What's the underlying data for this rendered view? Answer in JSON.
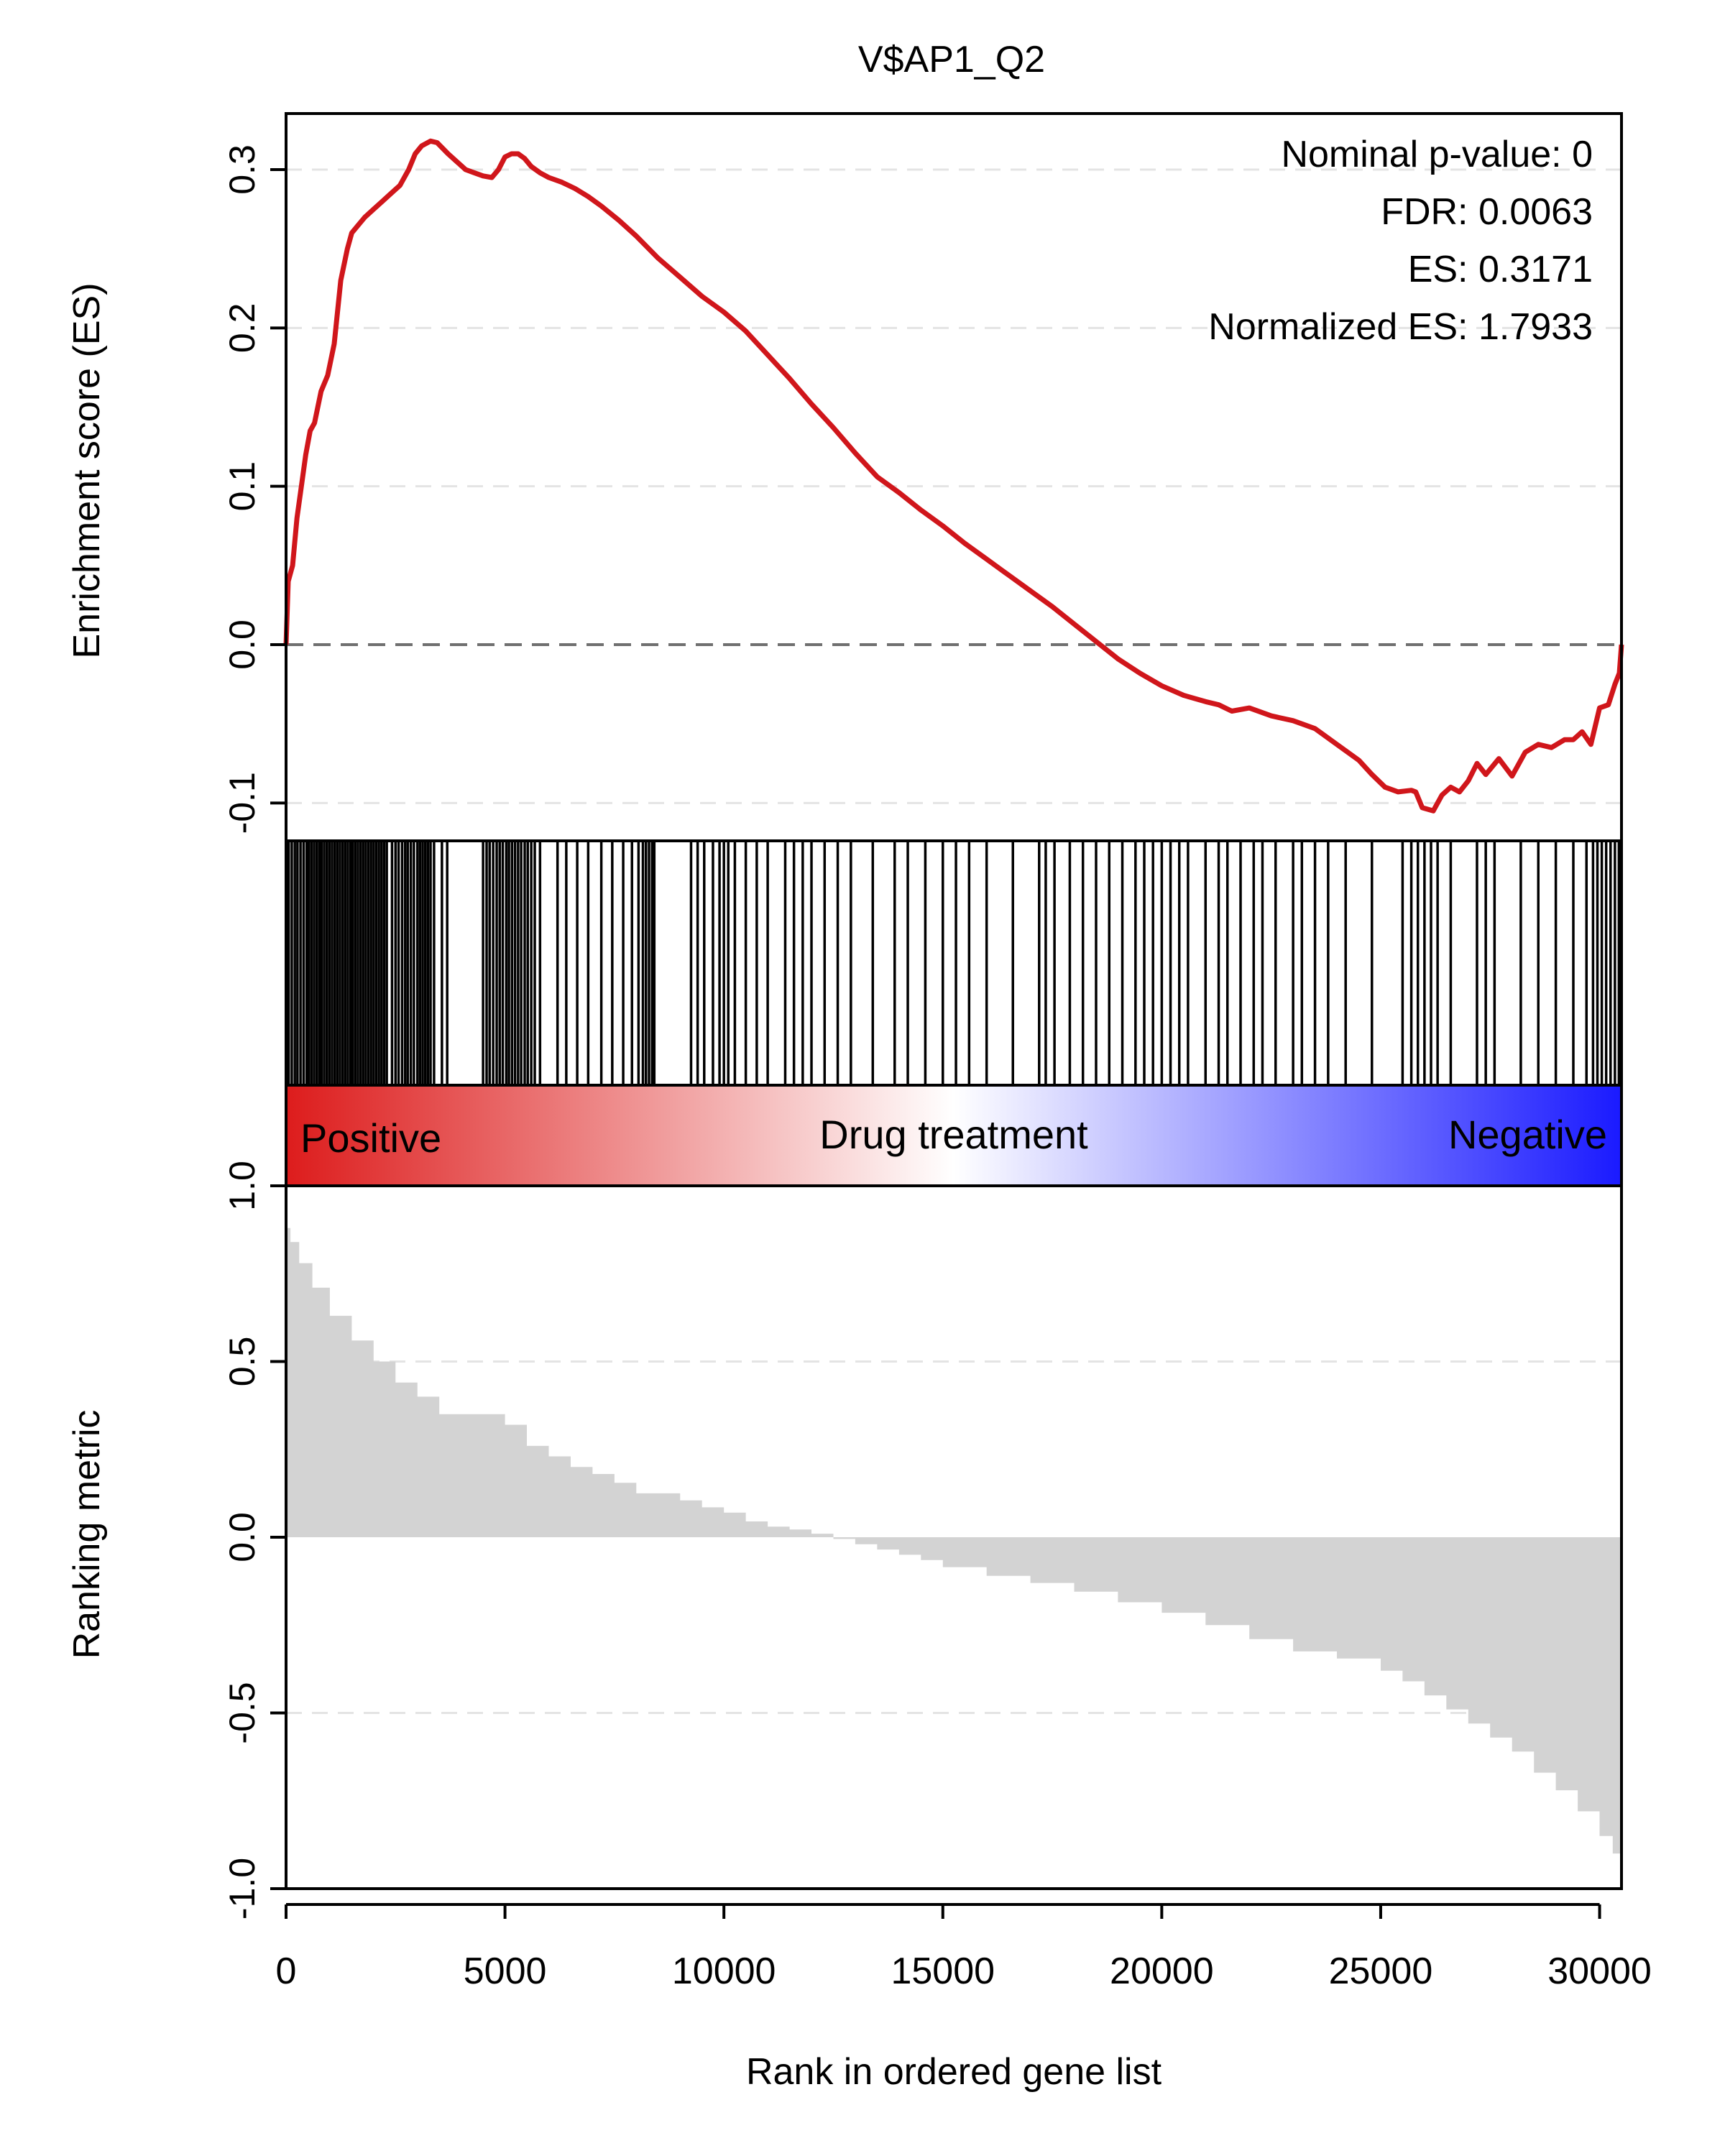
{
  "chart_data": [
    {
      "type": "line",
      "title": "V$AP1_Q2",
      "xlabel": "",
      "ylabel": "Enrichment score (ES)",
      "xlim": [
        0,
        30500
      ],
      "ylim": [
        -0.12,
        0.335
      ],
      "yticks": [
        -0.1,
        0.0,
        0.1,
        0.2,
        0.3
      ],
      "ytick_labels": [
        "-0.1",
        "0.0",
        "0.1",
        "0.2",
        "0.3"
      ],
      "grid": "dashed horizontal at y ticks",
      "zero_line": "dashed",
      "annotations": [
        "Nominal p-value: 0",
        "FDR: 0.0063",
        "ES: 0.3171",
        "Normalized ES: 1.7933"
      ],
      "series": [
        {
          "color": "#d0161b",
          "x": [
            0,
            50,
            150,
            250,
            350,
            450,
            550,
            650,
            800,
            950,
            1100,
            1250,
            1400,
            1500,
            1650,
            1800,
            2000,
            2200,
            2400,
            2600,
            2800,
            2950,
            3100,
            3300,
            3450,
            3700,
            3900,
            4100,
            4300,
            4500,
            4700,
            4850,
            5000,
            5150,
            5300,
            5450,
            5600,
            5800,
            6000,
            6300,
            6600,
            6900,
            7200,
            7600,
            8000,
            8500,
            9000,
            9500,
            10000,
            10500,
            11000,
            11500,
            12000,
            12500,
            13000,
            13500,
            14000,
            14500,
            15000,
            15500,
            16000,
            16500,
            17000,
            17500,
            18000,
            18500,
            19000,
            19500,
            20000,
            20500,
            21000,
            21300,
            21600,
            22000,
            22500,
            23000,
            23500,
            24000,
            24500,
            24800,
            25100,
            25400,
            25700,
            25800,
            25950,
            26200,
            26400,
            26600,
            26800,
            27000,
            27200,
            27400,
            27700,
            28000,
            28300,
            28600,
            28900,
            29200,
            29400,
            29600,
            29800,
            30000,
            30200,
            30350,
            30450,
            30500
          ],
          "y": [
            0.0,
            0.04,
            0.05,
            0.08,
            0.1,
            0.12,
            0.135,
            0.14,
            0.16,
            0.17,
            0.19,
            0.23,
            0.25,
            0.26,
            0.265,
            0.27,
            0.275,
            0.28,
            0.285,
            0.29,
            0.3,
            0.31,
            0.315,
            0.318,
            0.317,
            0.31,
            0.305,
            0.3,
            0.298,
            0.296,
            0.295,
            0.3,
            0.308,
            0.31,
            0.31,
            0.307,
            0.302,
            0.298,
            0.295,
            0.292,
            0.288,
            0.283,
            0.277,
            0.268,
            0.258,
            0.244,
            0.232,
            0.22,
            0.21,
            0.198,
            0.183,
            0.168,
            0.152,
            0.137,
            0.121,
            0.106,
            0.096,
            0.085,
            0.075,
            0.064,
            0.054,
            0.044,
            0.034,
            0.024,
            0.013,
            0.002,
            -0.009,
            -0.018,
            -0.026,
            -0.032,
            -0.036,
            -0.038,
            -0.042,
            -0.04,
            -0.045,
            -0.048,
            -0.053,
            -0.063,
            -0.073,
            -0.082,
            -0.09,
            -0.093,
            -0.092,
            -0.093,
            -0.103,
            -0.105,
            -0.095,
            -0.09,
            -0.093,
            -0.086,
            -0.075,
            -0.082,
            -0.072,
            -0.083,
            -0.068,
            -0.063,
            -0.065,
            -0.06,
            -0.06,
            -0.055,
            -0.063,
            -0.04,
            -0.038,
            -0.025,
            -0.018,
            0.0
          ]
        }
      ]
    },
    {
      "type": "barcode",
      "title": "",
      "xlim": [
        0,
        30500
      ],
      "hits": [
        60,
        130,
        200,
        260,
        330,
        400,
        470,
        520,
        580,
        640,
        700,
        760,
        810,
        870,
        930,
        990,
        1050,
        1110,
        1170,
        1230,
        1290,
        1350,
        1410,
        1470,
        1520,
        1580,
        1640,
        1700,
        1760,
        1820,
        1880,
        1940,
        2000,
        2060,
        2120,
        2180,
        2240,
        2300,
        2420,
        2500,
        2570,
        2650,
        2720,
        2780,
        2850,
        2920,
        3000,
        3060,
        3120,
        3180,
        3240,
        3300,
        3380,
        3560,
        3680,
        4500,
        4580,
        4650,
        4730,
        4810,
        4880,
        4950,
        5030,
        5090,
        5160,
        5230,
        5300,
        5370,
        5450,
        5520,
        5600,
        5680,
        5800,
        6200,
        6400,
        6650,
        6900,
        7200,
        7450,
        7700,
        7900,
        8050,
        8150,
        8220,
        8290,
        8360,
        8410,
        9250,
        9400,
        9550,
        9750,
        9900,
        10000,
        10100,
        10250,
        10500,
        10750,
        11000,
        11400,
        11600,
        11800,
        12000,
        12300,
        12600,
        12900,
        13400,
        13900,
        14200,
        14600,
        15000,
        15300,
        15600,
        16000,
        16600,
        17200,
        17350,
        17550,
        17900,
        18200,
        18500,
        18800,
        19100,
        19400,
        19600,
        19800,
        20000,
        20200,
        20400,
        20600,
        21000,
        21300,
        21500,
        21800,
        22100,
        22300,
        22600,
        23000,
        23200,
        23500,
        23800,
        24200,
        24800,
        25500,
        25700,
        25850,
        26000,
        26150,
        26300,
        26600,
        27200,
        27400,
        27600,
        28200,
        28600,
        29000,
        29400,
        29700,
        29850,
        29950,
        30050,
        30150,
        30250,
        30350,
        30440
      ]
    },
    {
      "type": "gradient_bar",
      "title": "",
      "xlim": [
        0,
        30500
      ],
      "labels": [
        "Positive",
        "Drug treatment",
        "Negative"
      ],
      "colors": [
        "#dd1c1c",
        "#ffffff",
        "#1a1aff"
      ]
    },
    {
      "type": "area",
      "title": "",
      "xlabel": "Rank in ordered gene list",
      "ylabel": "Ranking metric",
      "xlim": [
        0,
        30500
      ],
      "ylim": [
        -1.0,
        1.0
      ],
      "xticks": [
        0,
        5000,
        10000,
        15000,
        20000,
        25000,
        30000
      ],
      "xtick_labels": [
        "0",
        "5000",
        "10000",
        "15000",
        "20000",
        "25000",
        "30000"
      ],
      "yticks": [
        -1.0,
        -0.5,
        0.0,
        0.5,
        1.0
      ],
      "ytick_labels": [
        "-1.0",
        "-0.5",
        "0.0",
        "0.5",
        "1.0"
      ],
      "grid": "dashed horizontal at ±0.5",
      "series": [
        {
          "color": "#d3d3d3",
          "x": [
            0,
            100,
            300,
            600,
            1000,
            1500,
            2000,
            2500,
            3000,
            3500,
            4000,
            4500,
            5000,
            5500,
            6000,
            6500,
            7000,
            7500,
            8000,
            8500,
            9000,
            9500,
            10000,
            10500,
            11000,
            11500,
            12000,
            12500,
            13000,
            13500,
            14000,
            14500,
            15000,
            16000,
            17000,
            18000,
            19000,
            20000,
            21000,
            22000,
            23000,
            24000,
            24500,
            25000,
            25500,
            26000,
            26500,
            27000,
            27500,
            28000,
            28500,
            29000,
            29500,
            30000,
            30300,
            30500
          ],
          "y": [
            0.88,
            0.84,
            0.78,
            0.71,
            0.63,
            0.56,
            0.5,
            0.44,
            0.4,
            0.35,
            0.35,
            0.35,
            0.32,
            0.26,
            0.23,
            0.2,
            0.18,
            0.155,
            0.125,
            0.125,
            0.105,
            0.085,
            0.07,
            0.045,
            0.03,
            0.022,
            0.01,
            -0.005,
            -0.02,
            -0.035,
            -0.05,
            -0.065,
            -0.085,
            -0.11,
            -0.13,
            -0.155,
            -0.185,
            -0.215,
            -0.25,
            -0.29,
            -0.325,
            -0.345,
            -0.345,
            -0.38,
            -0.41,
            -0.45,
            -0.49,
            -0.53,
            -0.57,
            -0.61,
            -0.67,
            -0.72,
            -0.78,
            -0.85,
            -0.9,
            -0.93
          ]
        }
      ]
    }
  ]
}
